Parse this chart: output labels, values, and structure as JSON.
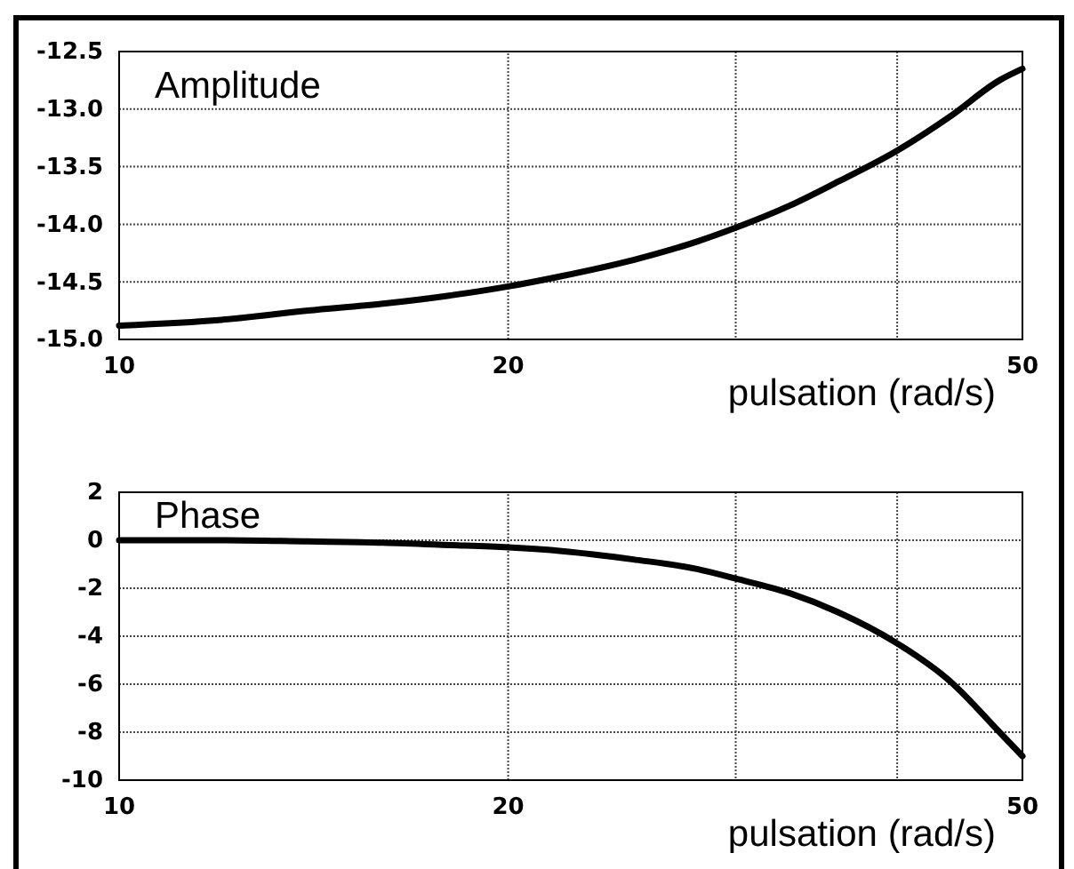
{
  "chart_data": [
    {
      "type": "line",
      "title": "Amplitude",
      "xlabel": "pulsation (rad/s)",
      "log": "x",
      "grid": true,
      "line_style": "solid",
      "marker": "none",
      "x": [
        10,
        12,
        14,
        16,
        18,
        20,
        22,
        25,
        28,
        30,
        33,
        36,
        40,
        44,
        48,
        50
      ],
      "series": [
        {
          "color": "#000000",
          "values": [
            -14.88,
            -14.83,
            -14.75,
            -14.69,
            -14.62,
            -14.54,
            -14.45,
            -14.31,
            -14.15,
            -14.03,
            -13.84,
            -13.63,
            -13.36,
            -13.06,
            -12.75,
            -12.65
          ]
        }
      ],
      "xlim": [
        10,
        50
      ],
      "xticks": [
        10,
        20,
        50
      ],
      "ylim": [
        -15,
        -12.5
      ],
      "yticks": [
        {
          "value": -15,
          "label": "-15.0"
        },
        {
          "value": -14.5,
          "label": "-14.5"
        },
        {
          "value": -14,
          "label": "-14.0"
        },
        {
          "value": -13.5,
          "label": "-13.5"
        },
        {
          "value": -13,
          "label": "-13.0"
        },
        {
          "value": -12.5,
          "label": "-12.5"
        }
      ]
    },
    {
      "type": "line",
      "title": "Phase",
      "xlabel": "pulsation (rad/s)",
      "log": "x",
      "grid": true,
      "line_style": "solid",
      "marker": "none",
      "x": [
        10,
        12,
        14,
        16,
        18,
        20,
        22,
        25,
        28,
        30,
        33,
        36,
        40,
        44,
        48,
        50
      ],
      "series": [
        {
          "color": "#000000",
          "values": [
            0,
            0,
            -0.05,
            -0.1,
            -0.2,
            -0.3,
            -0.45,
            -0.8,
            -1.2,
            -1.6,
            -2.2,
            -3.0,
            -4.3,
            -5.9,
            -8.0,
            -9.0
          ]
        }
      ],
      "xlim": [
        10,
        50
      ],
      "xticks": [
        10,
        20,
        50
      ],
      "ylim": [
        -10,
        2
      ],
      "yticks": [
        -10,
        -8,
        -6,
        -4,
        -2,
        0,
        2
      ]
    }
  ]
}
